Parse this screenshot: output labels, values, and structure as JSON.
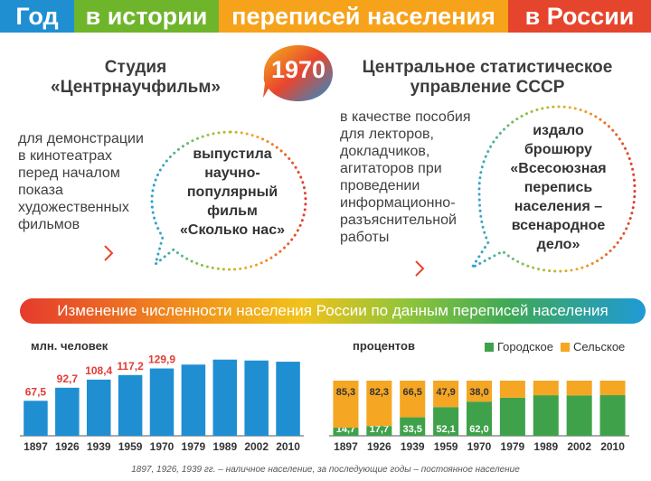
{
  "header": {
    "segments": [
      "Год",
      "в истории",
      "переписей населения",
      "в России"
    ],
    "colors": [
      "#1f8fd2",
      "#6fb52c",
      "#f7a21b",
      "#e5452c"
    ]
  },
  "year": "1970",
  "left_block": {
    "title_lines": [
      "Студия",
      "«Центрнаучфильм»"
    ],
    "desc_lines": [
      "для демонстрации",
      "в кинотеатрах",
      "перед началом",
      "показа",
      "художественных",
      "фильмов"
    ],
    "bubble_lines": [
      "выпустила",
      "научно-",
      "популярный",
      "фильм",
      "«Сколько нас»"
    ]
  },
  "right_block": {
    "title_lines": [
      "Центральное статистическое",
      "управление СССР"
    ],
    "desc_lines": [
      "в качестве пособия",
      "для лекторов,",
      "докладчиков,",
      "агитаторов при",
      "проведении",
      "информационно-",
      "разъяснительной",
      "работы"
    ],
    "bubble_lines": [
      "издало",
      "брошюру",
      "«Всесоюзная",
      "перепись",
      "населения –",
      "всенародное",
      "дело»"
    ]
  },
  "banner": "Изменение численности населения России по данным переписей населения",
  "footnote": "1897, 1926, 1939 гг. – наличное население, за последующие годы – постоянное население",
  "chart_data": [
    {
      "type": "bar",
      "ylabel": "млн. человек",
      "categories": [
        "1897",
        "1926",
        "1939",
        "1959",
        "1970",
        "1979",
        "1989",
        "2002",
        "2010"
      ],
      "values": [
        67.5,
        92.7,
        108.4,
        117.2,
        129.9,
        137.4,
        147.0,
        145.2,
        142.9
      ],
      "labels": [
        "67,5",
        "92,7",
        "108,4",
        "117,2",
        "129,9",
        "",
        "",
        "",
        ""
      ],
      "color": "#1f8fd2",
      "label_color": "#e33b34",
      "ylim": [
        0,
        150
      ]
    },
    {
      "type": "bar",
      "stacked": true,
      "ylabel": "процентов",
      "categories": [
        "1897",
        "1926",
        "1939",
        "1959",
        "1970",
        "1979",
        "1989",
        "2002",
        "2010"
      ],
      "series": [
        {
          "name": "Городское",
          "color": "#3fa24a",
          "values": [
            14.7,
            17.7,
            33.5,
            52.1,
            62.0,
            69.0,
            73.6,
            73.3,
            73.7
          ],
          "labels": [
            "14,7",
            "17,7",
            "33,5",
            "52,1",
            "62,0",
            "",
            "",
            "",
            ""
          ]
        },
        {
          "name": "Сельское",
          "color": "#f5a623",
          "values": [
            85.3,
            82.3,
            66.5,
            47.9,
            38.0,
            31.0,
            26.4,
            26.7,
            26.3
          ],
          "labels": [
            "85,3",
            "82,3",
            "66,5",
            "47,9",
            "38,0",
            "",
            "",
            "",
            ""
          ]
        }
      ],
      "ylim": [
        0,
        100
      ],
      "legend": "top-right"
    }
  ]
}
